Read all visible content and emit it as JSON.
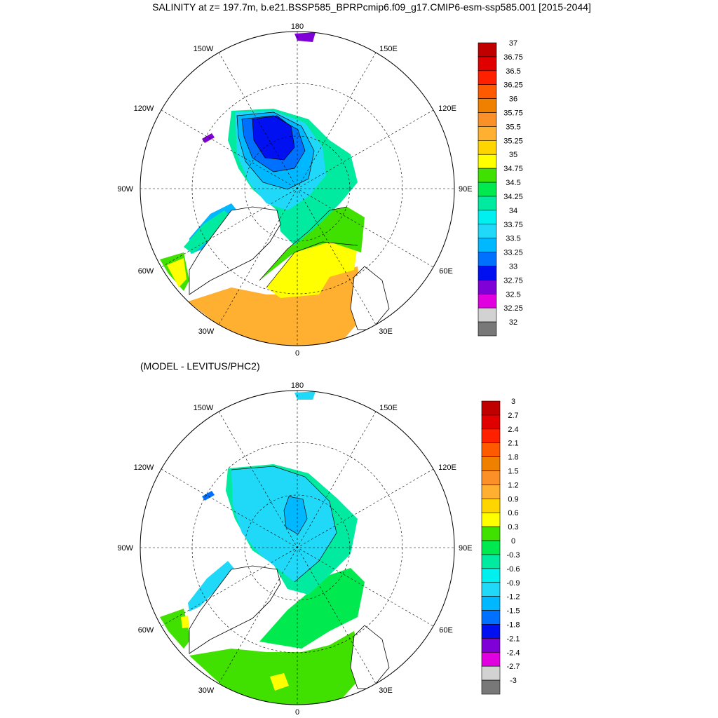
{
  "figure_title": "SALINITY at z= 197.7m, b.e21.BSSP585_BPRPcmip6.f09_g17.CMIP6-esm-ssp585.001 [2015-2044]",
  "difference_subtitle": "(MODEL - LEVITUS/PHC2)",
  "longitude_labels": {
    "top": "180",
    "bottom": "0",
    "upper_left": "150W",
    "upper_right": "150E",
    "mid_upper_left": "120W",
    "mid_upper_right": "120E",
    "left": "90W",
    "right": "90E",
    "lower_left": "60W",
    "lower_right": "60E",
    "bottom_left": "30W",
    "bottom_right": "30E"
  },
  "colorbars": {
    "salinity": {
      "labels": [
        "37",
        "36.75",
        "36.5",
        "36.25",
        "36",
        "35.75",
        "35.5",
        "35.25",
        "35",
        "34.75",
        "34.5",
        "34.25",
        "34",
        "33.75",
        "33.5",
        "33.25",
        "33",
        "32.75",
        "32.5",
        "32.25",
        "32"
      ],
      "colors": [
        "#c00000",
        "#e00000",
        "#ff2000",
        "#ff5a00",
        "#f08000",
        "#fc9028",
        "#ffb030",
        "#ffd500",
        "#ffff00",
        "#40e000",
        "#00ea50",
        "#00eaa0",
        "#00f0f0",
        "#20d8f8",
        "#00b8ff",
        "#0070ff",
        "#0010f0",
        "#8000d8",
        "#e000e0",
        "#d2d2d2",
        "#787878"
      ]
    },
    "difference": {
      "labels": [
        "3",
        "2.7",
        "2.4",
        "2.1",
        "1.8",
        "1.5",
        "1.2",
        "0.9",
        "0.6",
        "0.3",
        "0",
        "-0.3",
        "-0.6",
        "-0.9",
        "-1.2",
        "-1.5",
        "-1.8",
        "-2.1",
        "-2.4",
        "-2.7",
        "-3"
      ],
      "colors": [
        "#c00000",
        "#e00000",
        "#ff2000",
        "#ff5a00",
        "#f08000",
        "#fc9028",
        "#ffb030",
        "#ffd500",
        "#ffff00",
        "#40e000",
        "#00ea50",
        "#00eaa0",
        "#00f0f0",
        "#20d8f8",
        "#00b8ff",
        "#0070ff",
        "#0010f0",
        "#8000d8",
        "#e000e0",
        "#d2d2d2",
        "#787878"
      ]
    }
  }
}
